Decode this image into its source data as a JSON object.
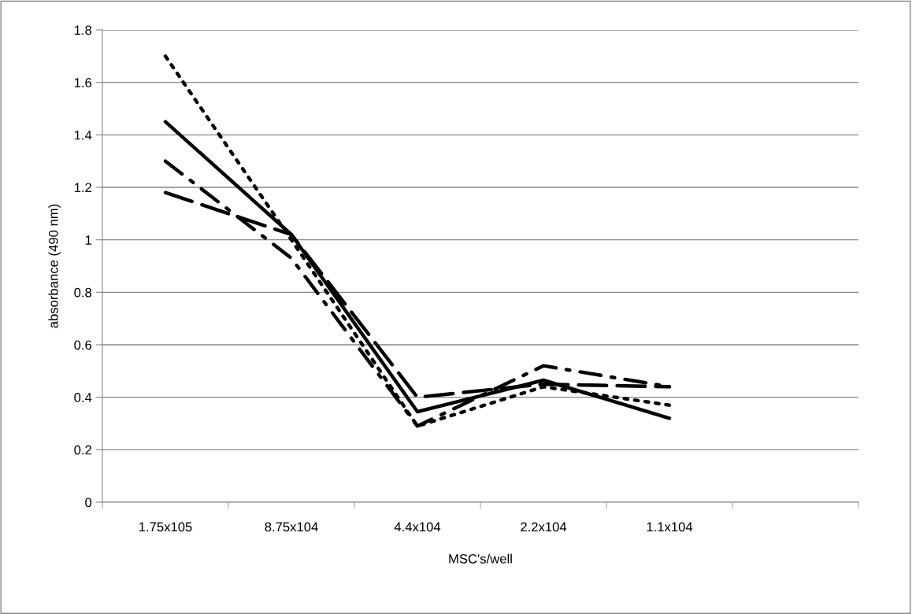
{
  "chart_data": {
    "type": "line",
    "xlabel": "MSC's/well",
    "ylabel": "absorbance (490 nm)",
    "categories": [
      "1.75x105",
      "8.75x104",
      "4.4x104",
      "2.2x104",
      "1.1x104",
      null
    ],
    "series": [
      {
        "color": "#000000",
        "line_style": "solid",
        "values": [
          1.45,
          1.02,
          0.345,
          0.465,
          0.32,
          null
        ]
      },
      {
        "color": "#000000",
        "line_style": "dotted",
        "values": [
          1.7,
          1.0,
          0.29,
          0.44,
          0.37,
          null
        ]
      },
      {
        "color": "#000000",
        "line_style": "dashdot",
        "values": [
          1.3,
          0.93,
          0.29,
          0.52,
          0.44,
          null
        ]
      },
      {
        "color": "#000000",
        "line_style": "dashed",
        "values": [
          1.18,
          1.02,
          0.4,
          0.45,
          0.44,
          null
        ]
      }
    ],
    "ylim": [
      0,
      1.8
    ],
    "yticks": [
      0,
      0.2,
      0.4,
      0.6,
      0.8,
      1,
      1.2,
      1.4,
      1.6,
      1.8
    ],
    "grid": "y",
    "marker": "none"
  }
}
